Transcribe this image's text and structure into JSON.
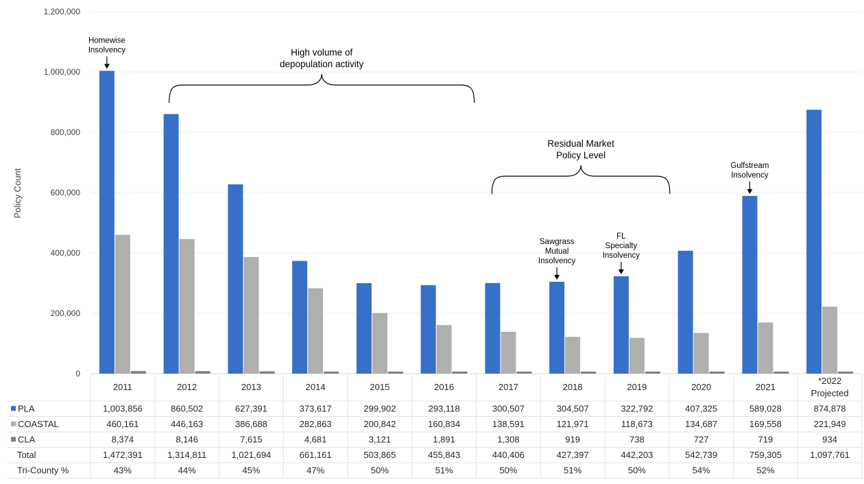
{
  "chart_data": {
    "type": "bar",
    "ylabel": "Policy Count",
    "ylim": [
      0,
      1200000
    ],
    "yticks": [
      0,
      200000,
      400000,
      600000,
      800000,
      1000000,
      1200000
    ],
    "ytick_labels": [
      "0",
      "200,000",
      "400,000",
      "600,000",
      "800,000",
      "1,000,000",
      "1,200,000"
    ],
    "categories": [
      "2011",
      "2012",
      "2013",
      "2014",
      "2015",
      "2016",
      "2017",
      "2018",
      "2019",
      "2020",
      "2021",
      "*2022 Projected"
    ],
    "series": [
      {
        "name": "PLA",
        "color": "#3670C8",
        "values": [
          1003856,
          860502,
          627391,
          373617,
          299902,
          293118,
          300507,
          304507,
          322792,
          407325,
          589028,
          874878
        ],
        "labels": [
          "1,003,856",
          "860,502",
          "627,391",
          "373,617",
          "299,902",
          "293,118",
          "300,507",
          "304,507",
          "322,792",
          "407,325",
          "589,028",
          "874,878"
        ]
      },
      {
        "name": "COASTAL",
        "color": "#B1AEAE",
        "values": [
          460161,
          446163,
          386688,
          282863,
          200842,
          160834,
          138591,
          121971,
          118673,
          134687,
          169558,
          221949
        ],
        "labels": [
          "460,161",
          "446,163",
          "386,688",
          "282,863",
          "200,842",
          "160,834",
          "138,591",
          "121,971",
          "118,673",
          "134,687",
          "169,558",
          "221,949"
        ]
      },
      {
        "name": "CLA",
        "color": "#7F7F7F",
        "values": [
          8374,
          8146,
          7615,
          4681,
          3121,
          1891,
          1308,
          919,
          738,
          727,
          719,
          934
        ],
        "labels": [
          "8,374",
          "8,146",
          "7,615",
          "4,681",
          "3,121",
          "1,891",
          "1,308",
          "919",
          "738",
          "727",
          "719",
          "934"
        ]
      }
    ],
    "extra_rows": [
      {
        "name": "Total",
        "labels": [
          "1,472,391",
          "1,314,811",
          "1,021,694",
          "661,161",
          "503,865",
          "455,843",
          "440,406",
          "427,397",
          "442,203",
          "542,739",
          "759,305",
          "1,097,761"
        ]
      },
      {
        "name": "Tri-County %",
        "labels": [
          "43%",
          "44%",
          "45%",
          "47%",
          "50%",
          "51%",
          "50%",
          "51%",
          "50%",
          "54%",
          "52%",
          ""
        ]
      }
    ],
    "annotations": {
      "arrows": [
        {
          "lines": [
            "Homewise",
            "Insolvency"
          ],
          "category": 0
        },
        {
          "lines": [
            "Sawgrass",
            "Mutual",
            "Insolvency"
          ],
          "category": 7
        },
        {
          "lines": [
            "FL",
            "Specialty",
            "Insolvency"
          ],
          "category": 8
        },
        {
          "lines": [
            "Gulfstream",
            "Insolvency"
          ],
          "category": 10
        }
      ],
      "braces": [
        {
          "lines": [
            "High volume of",
            "depopulation activity"
          ],
          "from_category": 1,
          "to_category": 5
        },
        {
          "lines": [
            "Residual Market",
            "Policy Level"
          ],
          "from_category": 6,
          "to_category": 8
        }
      ]
    }
  }
}
